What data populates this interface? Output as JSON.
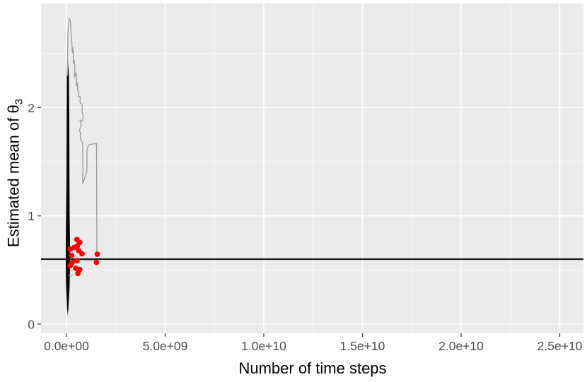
{
  "chart_data": {
    "type": "line",
    "title": "",
    "xlabel": "Number of time steps",
    "ylabel_main": "Estimated mean of θ",
    "ylabel_sub": "3",
    "legend": false,
    "grid": true,
    "xlim": [
      -1290000000.0,
      26200000000.0
    ],
    "ylim": [
      -0.085,
      2.962
    ],
    "x_unit_multiplier": 1000000000.0,
    "x_ticks": [
      {
        "label": "0.0e+00",
        "value": 0
      },
      {
        "label": "5.0e+09",
        "value": 5000000000.0
      },
      {
        "label": "1.0e+10",
        "value": 10000000000.0
      },
      {
        "label": "1.5e+10",
        "value": 15000000000.0
      },
      {
        "label": "2.0e+10",
        "value": 20000000000.0
      },
      {
        "label": "2.5e+10",
        "value": 25000000000.0
      }
    ],
    "y_ticks": [
      {
        "label": "0",
        "value": 0
      },
      {
        "label": "1",
        "value": 1
      },
      {
        "label": "2",
        "value": 2
      }
    ],
    "x_minor_ticks": [
      2500000000.0,
      7500000000.0,
      12500000000.0,
      17500000000.0,
      22500000000.0
    ],
    "y_minor_ticks": [
      0.5,
      1.5,
      2.5
    ],
    "reference_line_y": 0.6,
    "point_radius": 3.9,
    "colors": {
      "panel_background": "#EBEBEB",
      "grid_color": "#FFFFFF",
      "tick_mark_color": "#333333",
      "tick_label_color": "#4D4D4D",
      "axis_title_color": "#000000",
      "reference_line_color": "#1C1C1C",
      "trace_color": "#9B9B9B",
      "band_color": "#060606",
      "connector_color": "#ACACAC",
      "point_color": "#FB0000"
    },
    "series": [
      {
        "name": "outlier-trace",
        "points": [
          [
            0.054,
            2.3
          ],
          [
            0.06,
            2.55
          ],
          [
            0.075,
            2.7
          ],
          [
            0.143,
            2.826
          ],
          [
            0.197,
            2.8
          ],
          [
            0.226,
            2.702
          ],
          [
            0.269,
            2.617
          ],
          [
            0.297,
            2.506
          ],
          [
            0.33,
            2.552
          ],
          [
            0.358,
            2.474
          ],
          [
            0.341,
            2.408
          ],
          [
            0.394,
            2.435
          ],
          [
            0.43,
            2.376
          ],
          [
            0.401,
            2.278
          ],
          [
            0.484,
            2.324
          ],
          [
            0.52,
            2.265
          ],
          [
            0.495,
            2.2
          ],
          [
            0.573,
            2.232
          ],
          [
            0.556,
            2.161
          ],
          [
            0.627,
            2.141
          ],
          [
            0.591,
            2.102
          ],
          [
            0.699,
            2.102
          ],
          [
            0.681,
            2.05
          ],
          [
            0.806,
            2.024
          ],
          [
            0.781,
            1.965
          ],
          [
            0.842,
            1.932
          ],
          [
            0.824,
            1.873
          ],
          [
            0.681,
            1.886
          ],
          [
            0.753,
            1.834
          ],
          [
            0.663,
            1.795
          ],
          [
            0.717,
            1.756
          ],
          [
            0.699,
            1.717
          ],
          [
            0.817,
            1.671
          ],
          [
            0.824,
            1.593
          ],
          [
            0.835,
            1.416
          ],
          [
            0.817,
            1.332
          ],
          [
            0.832,
            1.299
          ],
          [
            1.039,
            1.416
          ],
          [
            1.039,
            1.606
          ],
          [
            1.111,
            1.651
          ],
          [
            1.183,
            1.661
          ],
          [
            1.523,
            1.668
          ],
          [
            1.541,
            0.655
          ],
          [
            1.56,
            0.646
          ]
        ]
      }
    ],
    "dense_band_polygon": [
      [
        0.054,
        2.49
      ],
      [
        0.125,
        2.3
      ],
      [
        0.143,
        1.9
      ],
      [
        0.15,
        1.4
      ],
      [
        0.161,
        1.0
      ],
      [
        0.179,
        0.75
      ],
      [
        0.179,
        0.55
      ],
      [
        0.161,
        0.35
      ],
      [
        0.1,
        0.15
      ],
      [
        0.065,
        0.078
      ],
      [
        0.03,
        0.15
      ],
      [
        -0.02,
        0.35
      ],
      [
        -0.035,
        0.55
      ],
      [
        -0.035,
        0.75
      ],
      [
        -0.02,
        1.0
      ],
      [
        0.0,
        1.4
      ],
      [
        0.007,
        1.9
      ],
      [
        0.018,
        2.3
      ]
    ],
    "connector_polylines": [
      [
        [
          0.11,
          0.6
        ],
        [
          1.45,
          0.585
        ],
        [
          1.52,
          0.575
        ]
      ],
      [
        [
          0.1,
          0.7
        ],
        [
          0.22,
          0.715
        ],
        [
          0.18,
          0.665
        ],
        [
          0.32,
          0.685
        ],
        [
          0.28,
          0.65
        ]
      ],
      [
        [
          0.1,
          0.52
        ],
        [
          0.25,
          0.535
        ],
        [
          0.2,
          0.493
        ],
        [
          0.38,
          0.505
        ]
      ],
      [
        [
          0.1,
          0.45
        ],
        [
          0.22,
          0.44
        ],
        [
          0.32,
          0.462
        ]
      ],
      [
        [
          0.1,
          0.635
        ],
        [
          0.3,
          0.615
        ],
        [
          0.48,
          0.632
        ],
        [
          0.62,
          0.6
        ]
      ]
    ],
    "final_estimate_points": [
      [
        0.53,
        0.781
      ],
      [
        0.67,
        0.755
      ],
      [
        0.55,
        0.722
      ],
      [
        0.38,
        0.707
      ],
      [
        0.19,
        0.693
      ],
      [
        0.62,
        0.678
      ],
      [
        0.79,
        0.65
      ],
      [
        1.56,
        0.646
      ],
      [
        0.26,
        0.635
      ],
      [
        0.53,
        0.585
      ],
      [
        1.52,
        0.57
      ],
      [
        0.29,
        0.57
      ],
      [
        0.19,
        0.541
      ],
      [
        0.47,
        0.515
      ],
      [
        0.67,
        0.504
      ],
      [
        0.58,
        0.468
      ]
    ]
  }
}
